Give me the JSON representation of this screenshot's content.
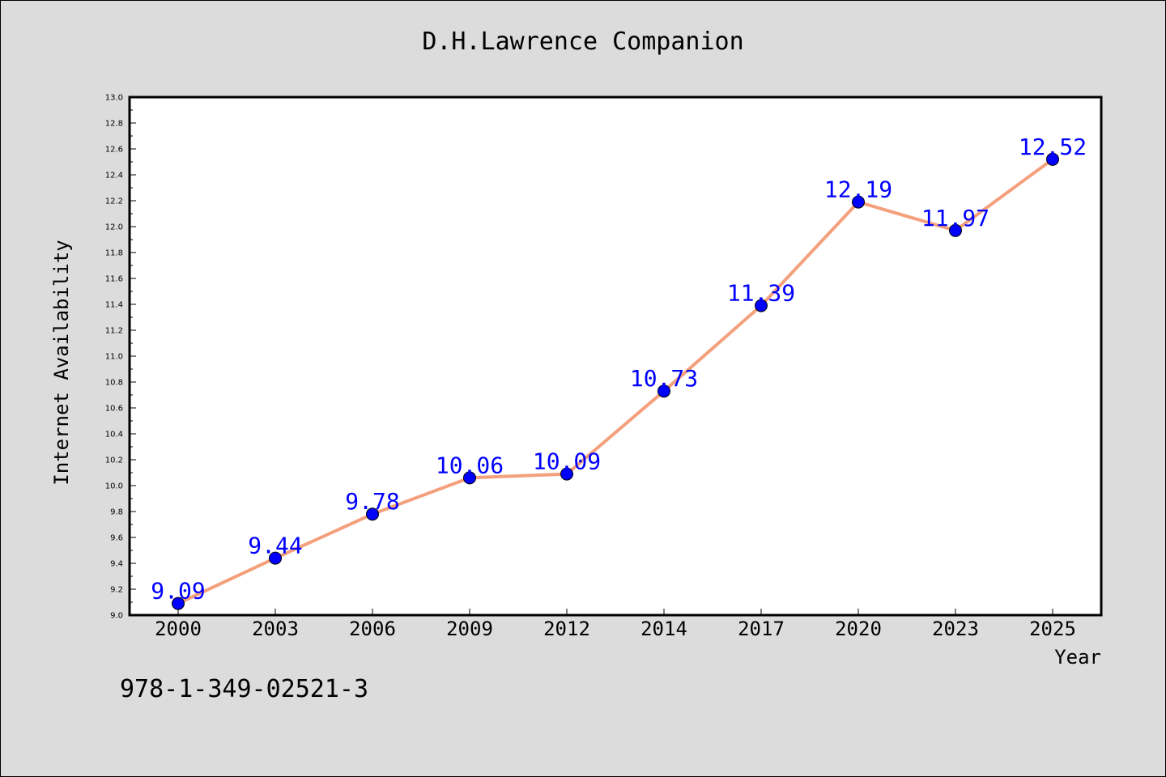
{
  "chart_data": {
    "type": "line",
    "title": "D.H.Lawrence Companion",
    "xlabel": "Year",
    "ylabel": "Internet Availability",
    "categories": [
      "2000",
      "2003",
      "2006",
      "2009",
      "2012",
      "2014",
      "2017",
      "2020",
      "2023",
      "2025"
    ],
    "series": [
      {
        "values": [
          9.09,
          9.44,
          9.78,
          10.06,
          10.09,
          10.73,
          11.39,
          12.19,
          11.97,
          12.52
        ]
      }
    ],
    "data_labels": [
      "9.09",
      "9.44",
      "9.78",
      "10.06",
      "10.09",
      "10.73",
      "11.39",
      "12.19",
      "11.97",
      "12.52"
    ],
    "ylim": [
      9.0,
      13.0
    ],
    "yticks": [
      "9.0",
      "9.2",
      "9.4",
      "9.6",
      "9.8",
      "10.0",
      "10.2",
      "10.4",
      "10.6",
      "10.8",
      "11.0",
      "11.2",
      "11.4",
      "11.6",
      "11.8",
      "12.0",
      "12.2",
      "12.4",
      "12.6",
      "12.8",
      "13.0"
    ],
    "grid": false,
    "legend": "none",
    "colors": {
      "line": "#f4a07c",
      "marker": "#0000ff",
      "marker_edge": "#000000",
      "data_label": "#0000ff",
      "plot_background": "#ffffff",
      "figure_background": "#dcdcdc"
    }
  },
  "footer": {
    "isbn": "978-1-349-02521-3"
  }
}
